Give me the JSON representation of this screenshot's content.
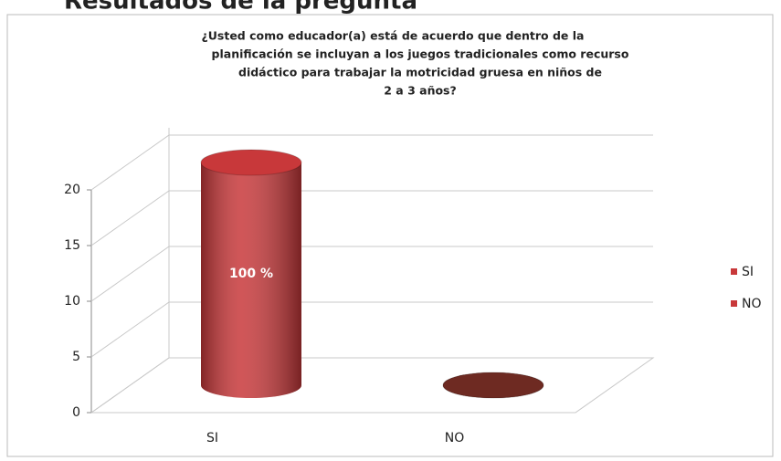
{
  "heading": "Resultados de la pregunta",
  "chart_data": {
    "type": "bar3d",
    "title": [
      "¿Usted como educador(a) está de acuerdo que dentro de la",
      "planificación se incluyan a los juegos tradicionales como recurso",
      "didáctico para trabajar la motricidad gruesa en niños de",
      "2 a 3 años?"
    ],
    "categories": [
      "SI",
      "NO"
    ],
    "values": [
      20,
      0
    ],
    "colors": [
      "#c8383a",
      "#6e2a22"
    ],
    "annotations": [
      "100 %"
    ],
    "ylim": [
      0,
      20
    ],
    "yticks": [
      0,
      5,
      10,
      15,
      20
    ],
    "grid": true,
    "legend": "right"
  }
}
